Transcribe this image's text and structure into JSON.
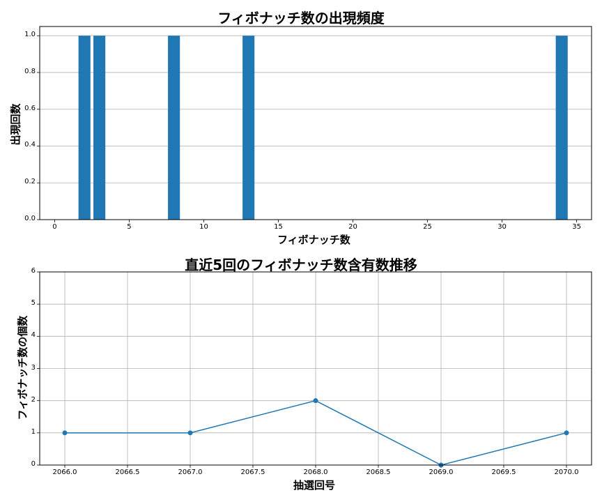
{
  "chart_data": [
    {
      "type": "bar",
      "title": "フィボナッチ数の出現頻度",
      "xlabel": "フィボナッチ数",
      "ylabel": "出現回数",
      "categories": [
        2,
        3,
        8,
        13,
        34
      ],
      "values": [
        1,
        1,
        1,
        1,
        1
      ],
      "xlim": [
        -1,
        36
      ],
      "ylim": [
        0,
        1.05
      ],
      "xticks": [
        "0",
        "5",
        "10",
        "15",
        "20",
        "25",
        "30",
        "35"
      ],
      "yticks": [
        "0.0",
        "0.2",
        "0.4",
        "0.6",
        "0.8",
        "1.0"
      ],
      "grid": "y-axis only",
      "color": "#1f77b4"
    },
    {
      "type": "line",
      "title": "直近5回のフィボナッチ数含有数推移",
      "xlabel": "抽選回号",
      "ylabel": "フィボナッチ数の個数",
      "x": [
        2066,
        2067,
        2068,
        2069,
        2070
      ],
      "values": [
        1,
        1,
        2,
        0,
        1
      ],
      "xlim": [
        2065.8,
        2070.2
      ],
      "ylim": [
        0,
        6
      ],
      "xticks": [
        "2066.0",
        "2066.5",
        "2067.0",
        "2067.5",
        "2068.0",
        "2068.5",
        "2069.0",
        "2069.5",
        "2070.0"
      ],
      "yticks": [
        "0",
        "1",
        "2",
        "3",
        "4",
        "5",
        "6"
      ],
      "grid": "both",
      "marker": "o",
      "color": "#1f77b4"
    }
  ],
  "top": {
    "title": "フィボナッチ数の出現頻度",
    "xlabel": "フィボナッチ数",
    "ylabel": "出現回数"
  },
  "bottom": {
    "title": "直近5回のフィボナッチ数含有数推移",
    "xlabel": "抽選回号",
    "ylabel": "フィボナッチ数の個数"
  }
}
